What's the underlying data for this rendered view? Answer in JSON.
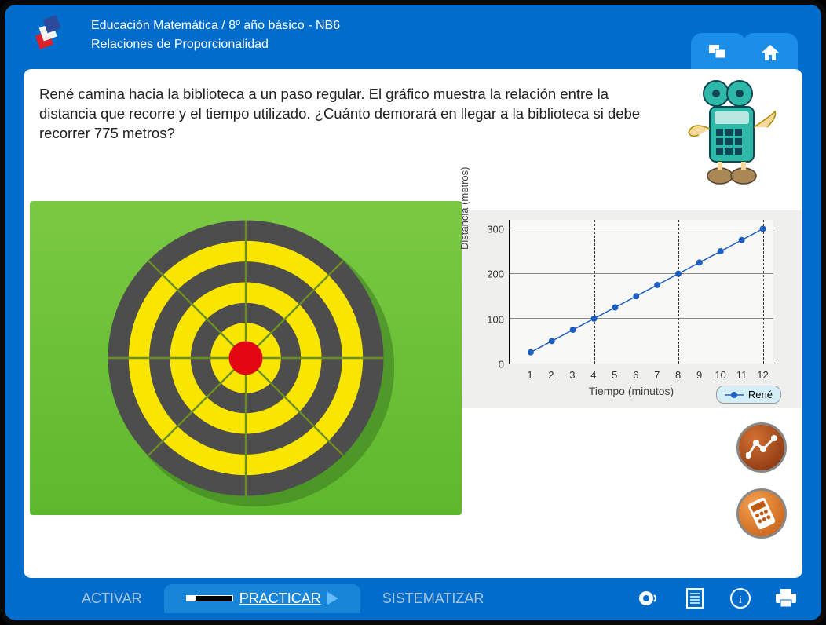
{
  "header": {
    "line1": "Educación Matemática / 8º año básico - NB6",
    "line2": "Relaciones de Proporcionalidad"
  },
  "question": "René camina hacia la biblioteca a un paso regular. El gráfico muestra la relación entre la distancia que recorre y el tiempo utilizado. ¿Cuánto demorará en llegar a la biblioteca si debe recorrer 775 metros?",
  "target": {
    "ring_colors": [
      "#4d4d4d",
      "#f8e600",
      "#4d4d4d",
      "#f8e600",
      "#4d4d4d",
      "#f8e600",
      "#e30613"
    ],
    "background_gradient": [
      "#7ac943",
      "#5eb82d"
    ],
    "radii": [
      180,
      153,
      126,
      99,
      72,
      46,
      22
    ],
    "sector_line_color": "#6b8e23"
  },
  "chart": {
    "type": "line",
    "title": "",
    "x_label": "Tiempo (minutos)",
    "y_label": "Distancia (metros)",
    "x_ticks": [
      1,
      2,
      3,
      4,
      5,
      6,
      7,
      8,
      9,
      10,
      11,
      12
    ],
    "y_ticks": [
      0,
      100,
      200,
      300
    ],
    "xlim": [
      0,
      12.5
    ],
    "ylim": [
      0,
      320
    ],
    "series_name": "René",
    "series_color": "#1f5fbf",
    "marker_style": "circle",
    "marker_size": 4,
    "line_width": 1.5,
    "data_x": [
      1,
      2,
      3,
      4,
      5,
      6,
      7,
      8,
      9,
      10,
      11,
      12
    ],
    "data_y": [
      25,
      50,
      75,
      100,
      125,
      150,
      175,
      200,
      225,
      250,
      275,
      300
    ],
    "dashed_x": [
      4,
      8,
      12
    ],
    "grid_color": "#888888",
    "background_color": "#efefed",
    "plot_bg": "#f8f8f6",
    "legend_bg": "#d4eef8"
  },
  "nav": {
    "items": [
      {
        "label": "ACTIVAR",
        "active": false
      },
      {
        "label": "PRACTICAR",
        "active": true
      },
      {
        "label": "SISTEMATIZAR",
        "active": false
      }
    ]
  },
  "side_buttons": {
    "chart_btn_bg": "#a14a1a",
    "calc_btn_bg": "#e07b2a"
  },
  "colors": {
    "frame_blue": "#006dcc",
    "tab_blue": "#1b8fe8",
    "white": "#ffffff"
  }
}
